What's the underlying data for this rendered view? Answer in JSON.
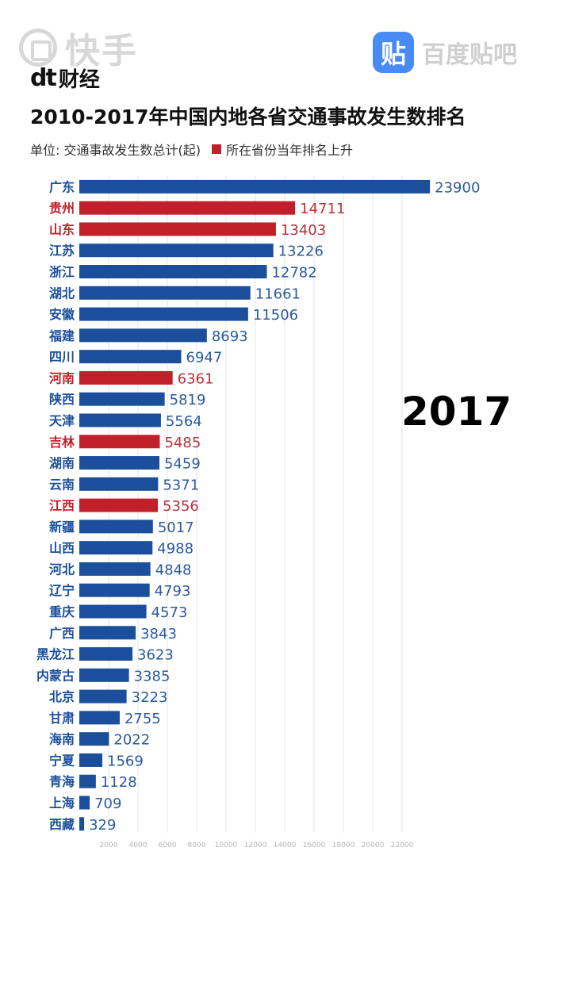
{
  "watermarks": {
    "kuaishou_text": "快手",
    "tieba_logo": "贴",
    "tieba_text": "百度贴吧"
  },
  "brand": {
    "logo": "dt",
    "name": "财经"
  },
  "chart_data": {
    "type": "bar",
    "orientation": "horizontal",
    "title": "2010-2017年中国内地各省交通事故发生数排名",
    "legend": {
      "unit": "单位: 交通事故发生数总计(起)",
      "highlight": "所在省份当年排名上升"
    },
    "year": "2017",
    "categories": [
      "广东",
      "贵州",
      "山东",
      "江苏",
      "浙江",
      "湖北",
      "安徽",
      "福建",
      "四川",
      "河南",
      "陕西",
      "天津",
      "吉林",
      "湖南",
      "云南",
      "江西",
      "新疆",
      "山西",
      "河北",
      "辽宁",
      "重庆",
      "广西",
      "黑龙江",
      "内蒙古",
      "北京",
      "甘肃",
      "海南",
      "宁夏",
      "青海",
      "上海",
      "西藏"
    ],
    "values": [
      23900,
      14711,
      13403,
      13226,
      12782,
      11661,
      11506,
      8693,
      6947,
      6361,
      5819,
      5564,
      5485,
      5459,
      5371,
      5356,
      5017,
      4988,
      4848,
      4793,
      4573,
      3843,
      3623,
      3385,
      3223,
      2755,
      2022,
      1569,
      1128,
      709,
      329
    ],
    "highlighted": [
      "贵州",
      "山东",
      "河南",
      "吉林",
      "江西"
    ],
    "xticks": [
      2000,
      4000,
      6000,
      8000,
      10000,
      12000,
      14000,
      16000,
      18000,
      20000,
      22000
    ],
    "xlim": [
      0,
      24000
    ],
    "grid": true,
    "colors": {
      "normal": "#1b4f9c",
      "highlight": "#c0202a",
      "label_normal": "#2b5a9e",
      "label_highlight": "#b5333c"
    }
  }
}
